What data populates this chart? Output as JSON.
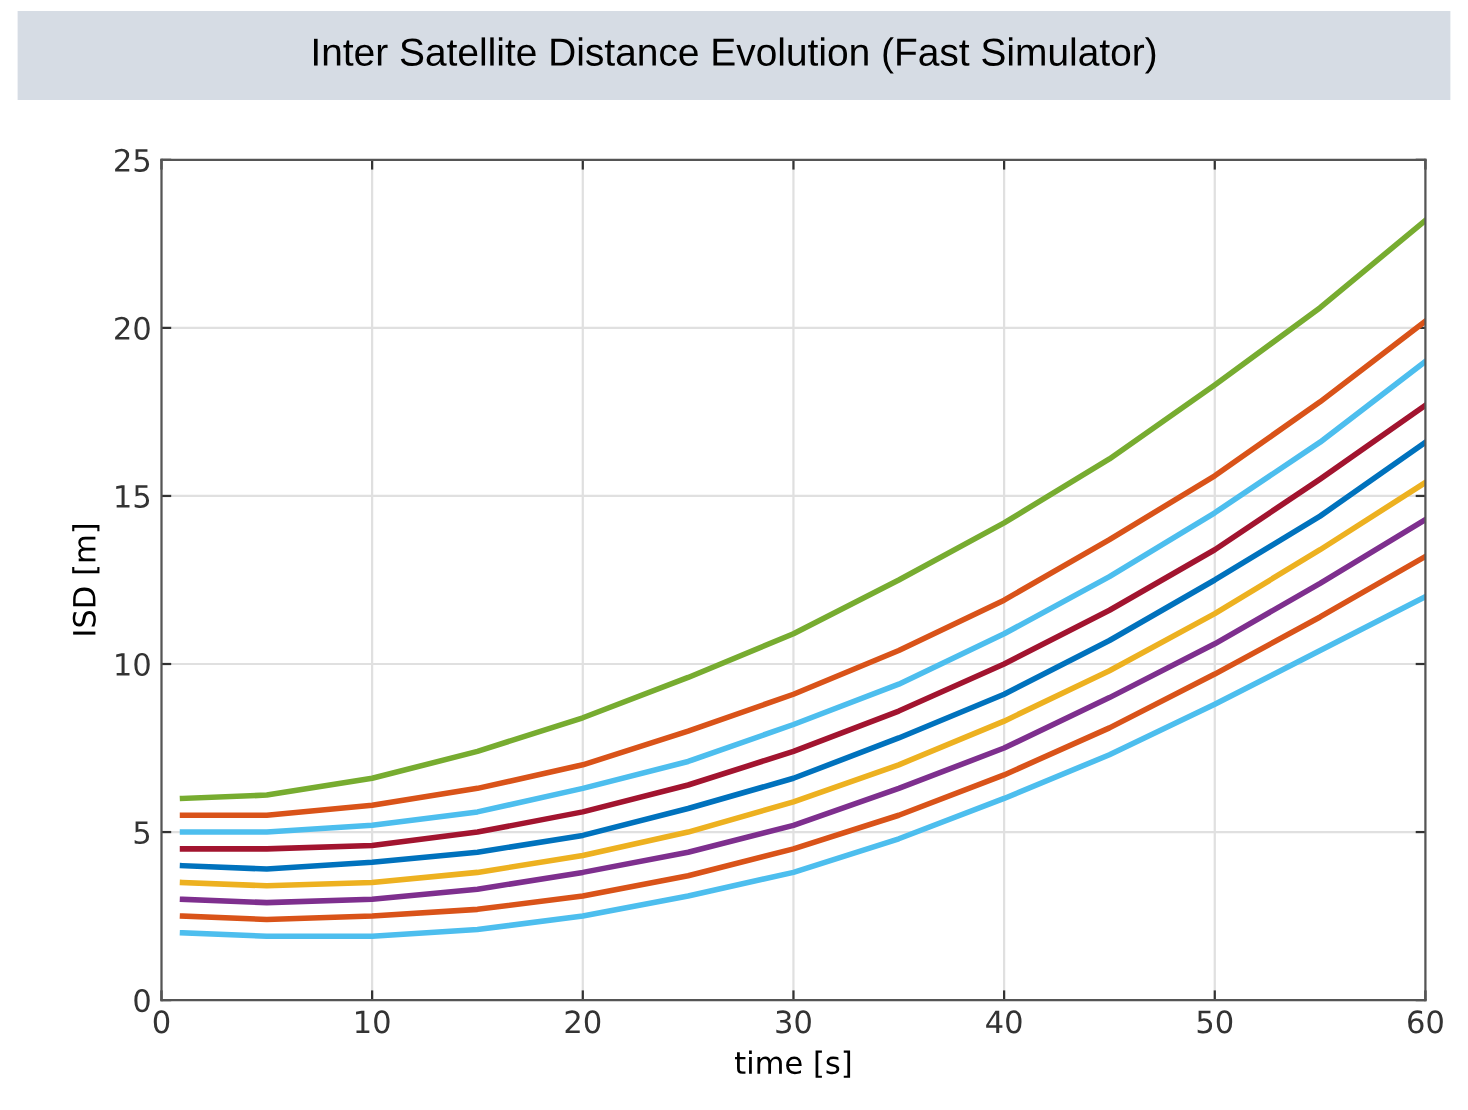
{
  "chart_data": {
    "type": "line",
    "title": "Inter Satellite Distance Evolution (Fast Simulator)",
    "xlabel": "time [s]",
    "ylabel": "ISD [m]",
    "x": [
      1,
      5,
      10,
      15,
      20,
      25,
      30,
      35,
      40,
      45,
      50,
      55,
      60
    ],
    "series": [
      {
        "color": "#4dbeee",
        "values": [
          2.0,
          1.9,
          1.9,
          2.1,
          2.5,
          3.1,
          3.8,
          4.8,
          6.0,
          7.3,
          8.8,
          10.4,
          12.0
        ]
      },
      {
        "color": "#d95319",
        "values": [
          2.5,
          2.4,
          2.5,
          2.7,
          3.1,
          3.7,
          4.5,
          5.5,
          6.7,
          8.1,
          9.7,
          11.4,
          13.2
        ]
      },
      {
        "color": "#7e2f8e",
        "values": [
          3.0,
          2.9,
          3.0,
          3.3,
          3.8,
          4.4,
          5.2,
          6.3,
          7.5,
          9.0,
          10.6,
          12.4,
          14.3
        ]
      },
      {
        "color": "#edb120",
        "values": [
          3.5,
          3.4,
          3.5,
          3.8,
          4.3,
          5.0,
          5.9,
          7.0,
          8.3,
          9.8,
          11.5,
          13.4,
          15.4
        ]
      },
      {
        "color": "#0072bd",
        "values": [
          4.0,
          3.9,
          4.1,
          4.4,
          4.9,
          5.7,
          6.6,
          7.8,
          9.1,
          10.7,
          12.5,
          14.4,
          16.6
        ]
      },
      {
        "color": "#a2142f",
        "values": [
          4.5,
          4.5,
          4.6,
          5.0,
          5.6,
          6.4,
          7.4,
          8.6,
          10.0,
          11.6,
          13.4,
          15.5,
          17.7
        ]
      },
      {
        "color": "#4dbeee",
        "values": [
          5.0,
          5.0,
          5.2,
          5.6,
          6.3,
          7.1,
          8.2,
          9.4,
          10.9,
          12.6,
          14.5,
          16.6,
          19.0
        ]
      },
      {
        "color": "#d95319",
        "values": [
          5.5,
          5.5,
          5.8,
          6.3,
          7.0,
          8.0,
          9.1,
          10.4,
          11.9,
          13.7,
          15.6,
          17.8,
          20.2
        ]
      },
      {
        "color": "#77ac30",
        "values": [
          6.0,
          6.1,
          6.6,
          7.4,
          8.4,
          9.6,
          10.9,
          12.5,
          14.2,
          16.1,
          18.3,
          20.6,
          23.2
        ]
      }
    ],
    "xlim": [
      0,
      60
    ],
    "xticks": [
      0,
      10,
      20,
      30,
      40,
      50,
      60
    ],
    "ylim": [
      0,
      25
    ],
    "yticks": [
      0,
      5,
      10,
      15,
      20,
      25
    ],
    "grid": true
  }
}
